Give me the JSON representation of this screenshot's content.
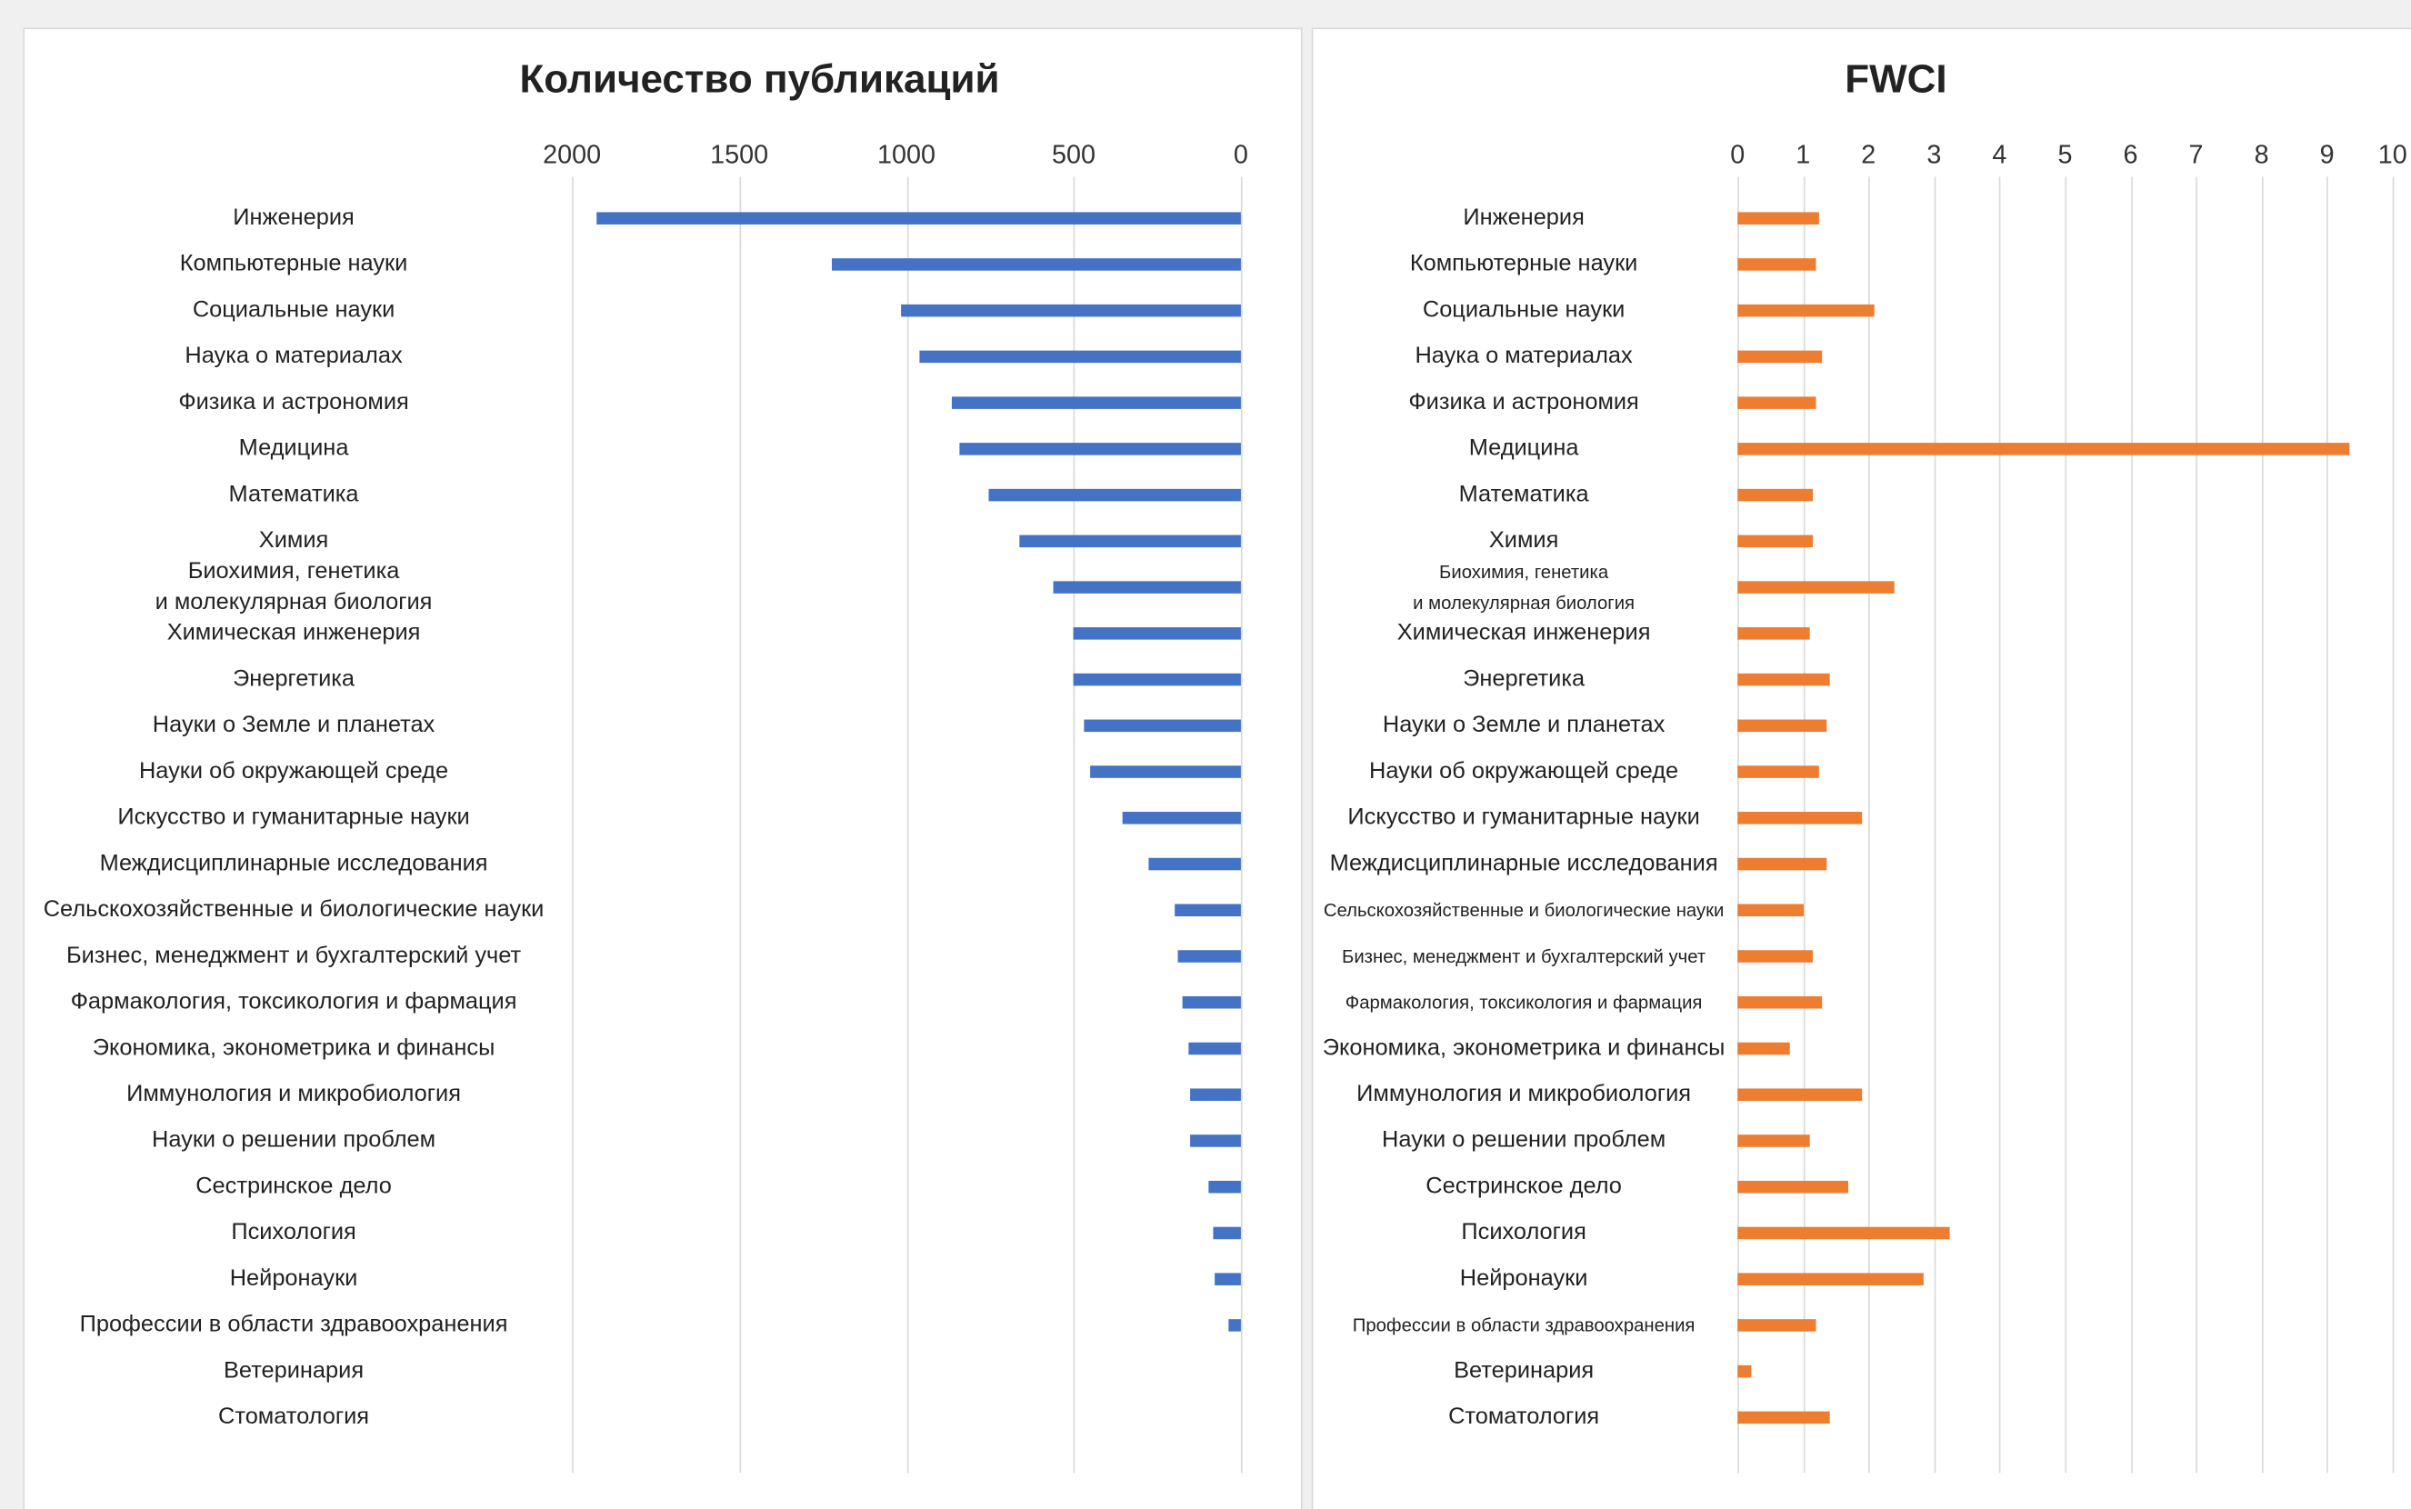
{
  "chart_data": [
    {
      "type": "bar",
      "title": "Количество публикаций",
      "categories": [
        "Инженерия",
        "Компьютерные науки",
        "Социальные науки",
        "Наука о материалах",
        "Физика и астрономия",
        "Медицина",
        "Математика",
        "Химия",
        "Биохимия, генетика\nи молекулярная биология",
        "Химическая инженерия",
        "Энергетика",
        "Науки о Земле и планетах",
        "Науки об окружающей среде",
        "Искусство и гуманитарные науки",
        "Междисциплинарные исследования",
        "Сельскохозяйственные и биологические науки",
        "Бизнес, менеджмент и бухгалтерский учет",
        "Фармакология, токсикология и фармация",
        "Экономика, эконометрика и финансы",
        "Иммунология и микробиология",
        "Науки о решении проблем",
        "Сестринское дело",
        "Психология",
        "Нейронауки",
        "Профессии в области здравоохранения",
        "Ветеринария",
        "Стоматология"
      ],
      "values": [
        1925,
        1225,
        1015,
        960,
        865,
        840,
        755,
        660,
        560,
        500,
        500,
        470,
        450,
        355,
        275,
        200,
        190,
        175,
        155,
        150,
        150,
        95,
        85,
        80,
        35,
        0,
        0
      ],
      "color": "#4472c4",
      "xlim": [
        2000,
        0
      ],
      "xticks": [
        2000,
        1500,
        1000,
        500,
        0
      ],
      "grid": true
    },
    {
      "type": "bar",
      "title": "FWCI",
      "categories": [
        "Инженерия",
        "Компьютерные науки",
        "Социальные науки",
        "Наука о материалах",
        "Физика и астрономия",
        "Медицина",
        "Математика",
        "Химия",
        "Биохимия, генетика\nи молекулярная биология",
        "Химическая инженерия",
        "Энергетика",
        "Науки о Земле и планетах",
        "Науки об окружающей среде",
        "Искусство и гуманитарные науки",
        "Междисциплинарные исследования",
        "Сельскохозяйственные и биологические науки",
        "Бизнес, менеджмент и бухгалтерский учет",
        "Фармакология, токсикология и фармация",
        "Экономика, эконометрика и финансы",
        "Иммунология и микробиология",
        "Науки о решении проблем",
        "Сестринское дело",
        "Психология",
        "Нейронауки",
        "Профессии в области здравоохранения",
        "Ветеринария",
        "Стоматология"
      ],
      "values": [
        1.25,
        1.2,
        2.1,
        1.3,
        1.2,
        9.35,
        1.15,
        1.15,
        2.4,
        1.1,
        1.4,
        1.35,
        1.25,
        1.9,
        1.35,
        1.0,
        1.15,
        1.3,
        0.8,
        1.9,
        1.1,
        1.7,
        3.25,
        2.85,
        1.2,
        0.2,
        1.4
      ],
      "color": "#ed7d31",
      "xlim": [
        0,
        10
      ],
      "xticks": [
        0,
        1,
        2,
        3,
        4,
        5,
        6,
        7,
        8,
        9,
        10
      ],
      "grid": true
    }
  ]
}
